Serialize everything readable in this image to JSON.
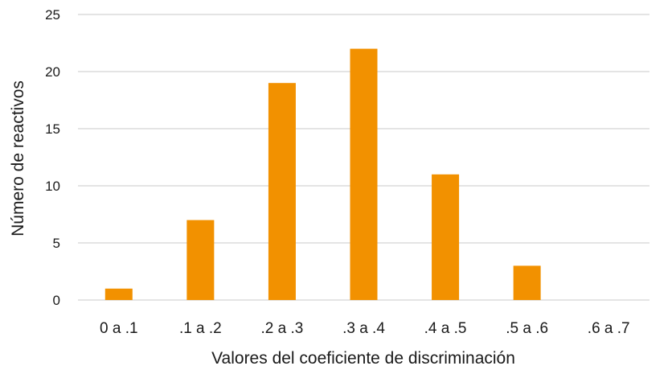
{
  "chart_data": {
    "type": "bar",
    "categories": [
      "0 a .1",
      ".1 a .2",
      ".2 a .3",
      ".3 a .4",
      ".4 a .5",
      ".5 a .6",
      ".6 a .7"
    ],
    "values": [
      1,
      7,
      19,
      22,
      11,
      3,
      0
    ],
    "title": "",
    "xlabel": "Valores del coeficiente de discriminación",
    "ylabel": "Número de reactivos",
    "ylim": [
      0,
      25
    ],
    "yticks": [
      0,
      5,
      10,
      15,
      20,
      25
    ],
    "grid": true,
    "legend": "none",
    "colors": {
      "bar": "#f29100",
      "grid": "#c9c9c9"
    }
  }
}
